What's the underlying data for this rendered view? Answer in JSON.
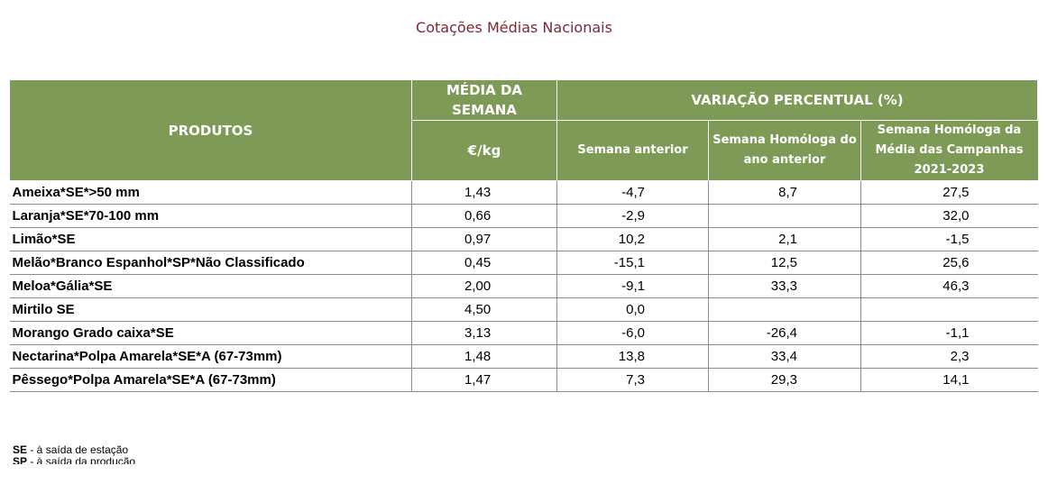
{
  "title": "Cotações Médias Nacionais",
  "header": {
    "produtos": "PRODUTOS",
    "media": "MÉDIA DA SEMANA",
    "unit": "€/kg",
    "variacao": "VARIAÇÃO PERCENTUAL (%)",
    "semana_anterior": "Semana anterior",
    "homologa_ano": "Semana Homóloga do ano anterior",
    "homologa_campanhas": "Semana Homóloga da Média das Campanhas 2021-2023"
  },
  "rows": [
    {
      "produto": "Ameixa*SE*>50 mm",
      "media": "1,43",
      "sem": "-4,7",
      "hom": "8,7",
      "camp": "27,5"
    },
    {
      "produto": "Laranja*SE*70-100 mm",
      "media": "0,66",
      "sem": "-2,9",
      "hom": "",
      "camp": "32,0"
    },
    {
      "produto": "Limão*SE",
      "media": "0,97",
      "sem": "10,2",
      "hom": "2,1",
      "camp": "-1,5"
    },
    {
      "produto": "Melão*Branco Espanhol*SP*Não Classificado",
      "media": "0,45",
      "sem": "-15,1",
      "hom": "12,5",
      "camp": "25,6"
    },
    {
      "produto": "Meloa*Gália*SE",
      "media": "2,00",
      "sem": "-9,1",
      "hom": "33,3",
      "camp": "46,3"
    },
    {
      "produto": "Mirtilo SE",
      "media": "4,50",
      "sem": "0,0",
      "hom": "",
      "camp": ""
    },
    {
      "produto": "Morango Grado caixa*SE",
      "media": "3,13",
      "sem": "-6,0",
      "hom": "-26,4",
      "camp": "-1,1"
    },
    {
      "produto": "Nectarina*Polpa Amarela*SE*A (67-73mm)",
      "media": "1,48",
      "sem": "13,8",
      "hom": "33,4",
      "camp": "2,3"
    },
    {
      "produto": "Pêssego*Polpa Amarela*SE*A (67-73mm)",
      "media": "1,47",
      "sem": "7,3",
      "hom": "29,3",
      "camp": "14,1"
    }
  ],
  "legend": [
    {
      "abbr": "SE",
      "text": " - à saída de estação"
    },
    {
      "abbr": "SP",
      "text": " - à saída da produção"
    }
  ],
  "colors": {
    "title": "#7b2a34",
    "header_bg": "#7d9a56",
    "header_text": "#ffffff"
  }
}
